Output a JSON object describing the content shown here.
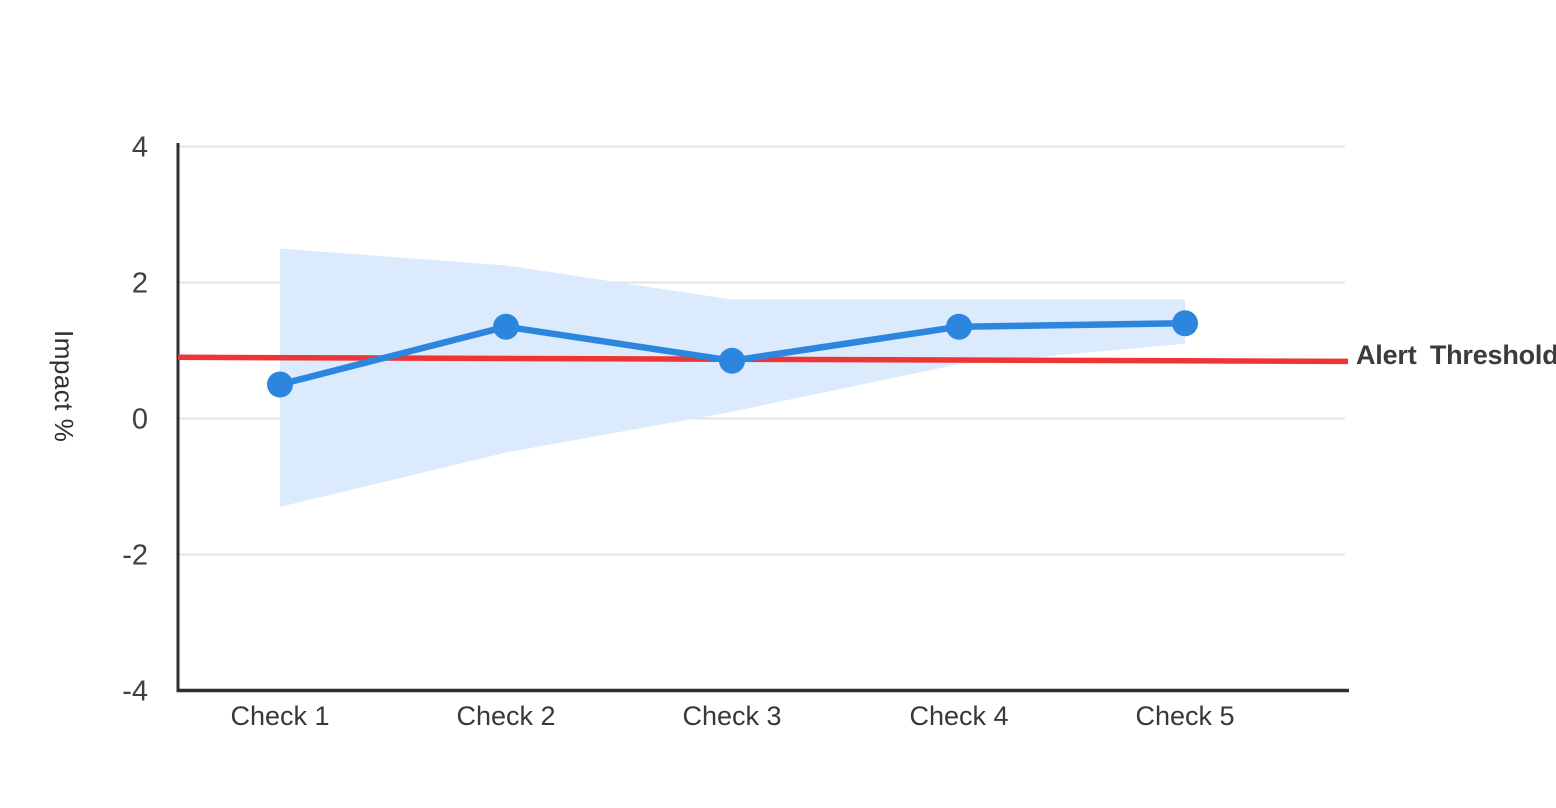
{
  "page": {
    "background": "#ffffff"
  },
  "chart_data": {
    "type": "line",
    "title": "",
    "categories": [
      "Check 1",
      "Check 2",
      "Check 3",
      "Check 4",
      "Check 5"
    ],
    "series": [
      {
        "name": "Impact",
        "values": [
          0.5,
          1.35,
          0.85,
          1.35,
          1.4
        ]
      }
    ],
    "confidence_band": {
      "upper": [
        2.5,
        2.25,
        1.75,
        1.75,
        1.75
      ],
      "lower": [
        -1.3,
        -0.5,
        0.1,
        0.8,
        1.1
      ]
    },
    "threshold": {
      "label": "Alert Threshold",
      "value_start": 0.9,
      "value_end": 0.84
    },
    "xlabel": "",
    "ylabel": "Impact %",
    "yticks": [
      "4",
      "2",
      "0",
      "-2",
      "-4"
    ],
    "ytick_values": [
      4,
      2,
      0,
      -2,
      -4
    ],
    "ylim": [
      -4,
      4
    ],
    "grid": true,
    "legend": "none",
    "colors": {
      "line": "#2d86de",
      "marker": "#2d86de",
      "band": "#dbeafd",
      "threshold": "#ee3434",
      "axis": "#2f2f2f",
      "gridline": "#e3e3e3",
      "tick_text": "#3f3f3f",
      "category_text": "#383838",
      "label_text": "#2e2e2e"
    }
  }
}
